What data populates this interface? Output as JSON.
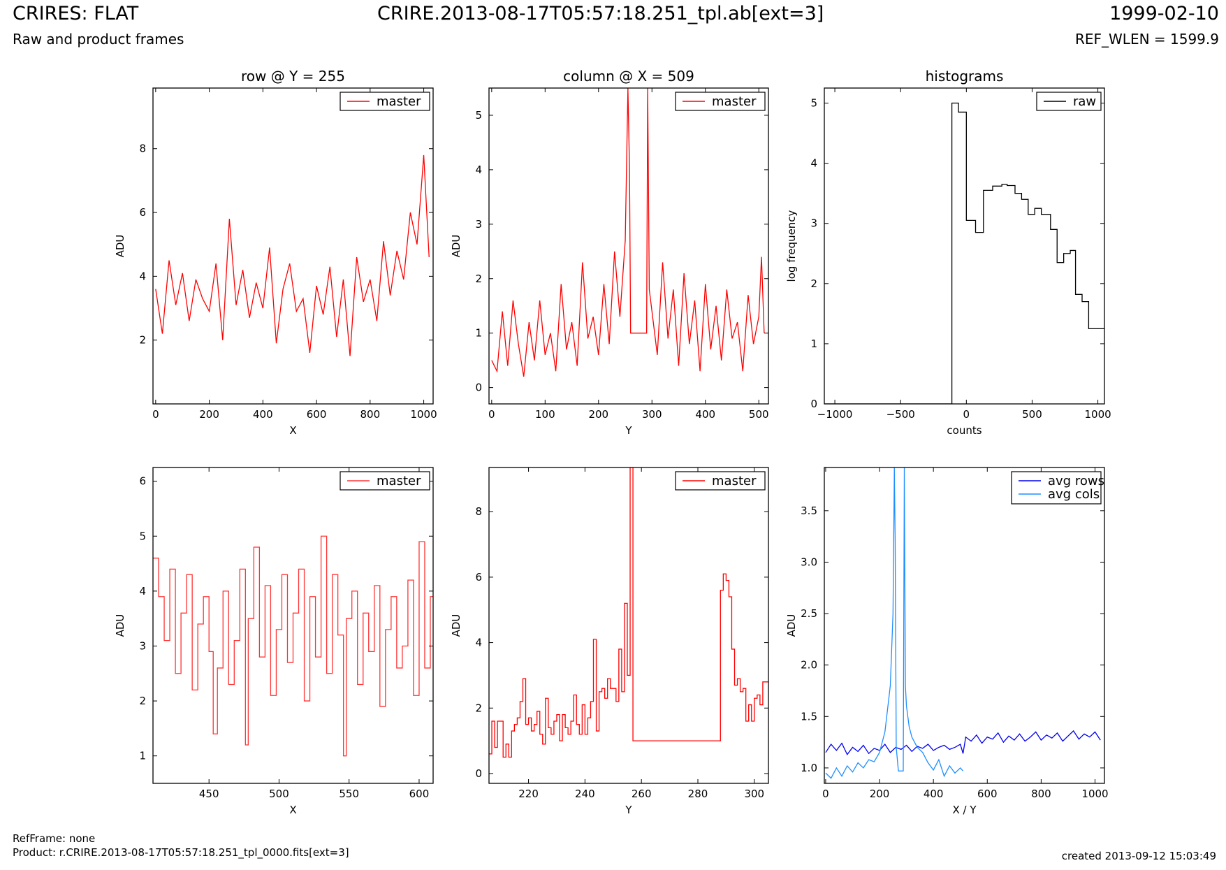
{
  "header": {
    "title_left": "CRIRES: FLAT",
    "subtitle_left": "Raw and product frames",
    "title_center": "CRIRE.2013-08-17T05:57:18.251_tpl.ab[ext=3]",
    "title_right": "1999-02-10",
    "subtitle_right": "REF_WLEN = 1599.9"
  },
  "footer": {
    "refframe": "RefFrame: none",
    "product": "Product: r.CRIRE.2013-08-17T05:57:18.251_tpl_0000.fits[ext=3]",
    "created": "created 2013-09-12 15:03:49"
  },
  "colors": {
    "master": "#ff0000",
    "master_zoom": "#ff3333",
    "raw": "#000000",
    "avg_rows": "#0000ee",
    "avg_cols": "#1e8fff"
  },
  "chart_data": [
    {
      "id": "row",
      "type": "line",
      "title": "row @ Y = 255",
      "xlabel": "X",
      "ylabel": "ADU",
      "xlim": [
        -10,
        1035
      ],
      "ylim": [
        0,
        9.9
      ],
      "xticks": [
        0,
        200,
        400,
        600,
        800,
        1000
      ],
      "yticks": [
        2,
        4,
        6,
        8
      ],
      "legend": "top-right",
      "series": [
        {
          "name": "master",
          "color": "#ff0000",
          "step": false,
          "x": [
            0,
            25,
            50,
            75,
            100,
            125,
            150,
            175,
            200,
            225,
            250,
            275,
            300,
            325,
            350,
            375,
            400,
            425,
            450,
            475,
            500,
            525,
            550,
            575,
            600,
            625,
            650,
            675,
            700,
            725,
            750,
            775,
            800,
            825,
            850,
            875,
            900,
            925,
            950,
            975,
            1000,
            1020
          ],
          "y": [
            3.6,
            2.2,
            4.5,
            3.1,
            4.1,
            2.6,
            3.9,
            3.3,
            2.9,
            4.4,
            2.0,
            5.8,
            3.1,
            4.2,
            2.7,
            3.8,
            3.0,
            4.9,
            1.9,
            3.6,
            4.4,
            2.9,
            3.3,
            1.6,
            3.7,
            2.8,
            4.3,
            2.1,
            3.9,
            1.5,
            4.6,
            3.2,
            3.9,
            2.6,
            5.1,
            3.4,
            4.8,
            3.9,
            6.0,
            5.0,
            7.8,
            4.6
          ]
        }
      ]
    },
    {
      "id": "column",
      "type": "line",
      "title": "column @ X = 509",
      "xlabel": "Y",
      "ylabel": "ADU",
      "xlim": [
        -5,
        518
      ],
      "ylim": [
        -0.3,
        5.5
      ],
      "xticks": [
        0,
        100,
        200,
        300,
        400,
        500
      ],
      "yticks": [
        0,
        1,
        2,
        3,
        4,
        5
      ],
      "legend": "top-right",
      "series": [
        {
          "name": "master",
          "color": "#ff0000",
          "step": false,
          "x": [
            0,
            10,
            20,
            30,
            40,
            50,
            60,
            70,
            80,
            90,
            100,
            110,
            120,
            130,
            140,
            150,
            160,
            170,
            180,
            190,
            200,
            210,
            220,
            230,
            240,
            250,
            255,
            258,
            260,
            262,
            290,
            292,
            295,
            300,
            310,
            320,
            330,
            340,
            350,
            360,
            370,
            380,
            390,
            400,
            410,
            420,
            430,
            440,
            450,
            460,
            470,
            480,
            490,
            500,
            505,
            510
          ],
          "y": [
            0.5,
            0.3,
            1.4,
            0.4,
            1.6,
            0.8,
            0.2,
            1.2,
            0.5,
            1.6,
            0.6,
            1.0,
            0.3,
            1.9,
            0.7,
            1.2,
            0.4,
            2.3,
            0.9,
            1.3,
            0.6,
            1.9,
            0.8,
            2.5,
            1.3,
            2.7,
            5.5,
            4.0,
            1.0,
            1.0,
            1.0,
            5.5,
            1.8,
            1.4,
            0.6,
            2.3,
            0.9,
            1.8,
            0.4,
            2.1,
            0.8,
            1.6,
            0.3,
            1.9,
            0.7,
            1.5,
            0.5,
            1.8,
            0.9,
            1.2,
            0.3,
            1.7,
            0.8,
            1.3,
            2.4,
            1.0
          ]
        }
      ]
    },
    {
      "id": "histograms",
      "type": "line",
      "title": "histograms",
      "xlabel": "counts",
      "ylabel": "log frequency",
      "xlim": [
        -1080,
        1050
      ],
      "ylim": [
        0,
        5.25
      ],
      "xticks": [
        -1000,
        -500,
        0,
        500,
        1000
      ],
      "yticks": [
        0,
        1,
        2,
        3,
        4,
        5
      ],
      "legend": "top-right",
      "series": [
        {
          "name": "raw",
          "color": "#000000",
          "step": true,
          "x": [
            -1080,
            -110,
            -60,
            0,
            70,
            130,
            200,
            270,
            310,
            370,
            420,
            470,
            520,
            570,
            640,
            690,
            740,
            790,
            830,
            880,
            930,
            1000
          ],
          "y": [
            0,
            5.0,
            4.85,
            3.05,
            2.85,
            3.55,
            3.62,
            3.65,
            3.63,
            3.5,
            3.4,
            3.15,
            3.25,
            3.15,
            2.9,
            2.35,
            2.5,
            2.55,
            1.82,
            1.7,
            1.25,
            1.25
          ]
        }
      ]
    },
    {
      "id": "row-zoom",
      "type": "line",
      "title": "",
      "xlabel": "X",
      "ylabel": "ADU",
      "xlim": [
        410,
        610
      ],
      "ylim": [
        0.5,
        6.25
      ],
      "xticks": [
        450,
        500,
        550,
        600
      ],
      "yticks": [
        1,
        2,
        3,
        4,
        5,
        6
      ],
      "legend": "top-right",
      "series": [
        {
          "name": "master",
          "color": "#ff3333",
          "step": true,
          "x": [
            410,
            414,
            418,
            422,
            426,
            430,
            434,
            438,
            442,
            446,
            450,
            453,
            456,
            460,
            464,
            468,
            472,
            476,
            478,
            482,
            486,
            490,
            494,
            498,
            502,
            506,
            510,
            514,
            518,
            522,
            526,
            530,
            534,
            538,
            542,
            546,
            548,
            552,
            556,
            560,
            564,
            568,
            572,
            576,
            580,
            584,
            588,
            592,
            596,
            600,
            604,
            608
          ],
          "y": [
            4.6,
            3.9,
            3.1,
            4.4,
            2.5,
            3.6,
            4.3,
            2.2,
            3.4,
            3.9,
            2.9,
            1.4,
            2.6,
            4.0,
            2.3,
            3.1,
            4.4,
            1.2,
            3.5,
            4.8,
            2.8,
            4.1,
            2.1,
            3.3,
            4.3,
            2.7,
            3.6,
            4.4,
            2.0,
            3.9,
            2.8,
            5.0,
            2.5,
            4.3,
            3.2,
            1.0,
            3.5,
            4.0,
            2.3,
            3.6,
            2.9,
            4.1,
            1.9,
            3.3,
            3.9,
            2.6,
            3.0,
            4.2,
            2.1,
            4.9,
            2.6,
            3.9
          ]
        }
      ]
    },
    {
      "id": "column-zoom",
      "type": "line",
      "title": "",
      "xlabel": "Y",
      "ylabel": "ADU",
      "xlim": [
        206,
        305
      ],
      "ylim": [
        -0.3,
        9.35
      ],
      "xticks": [
        220,
        240,
        260,
        280,
        300
      ],
      "yticks": [
        0,
        2,
        4,
        6,
        8
      ],
      "legend": "top-right",
      "series": [
        {
          "name": "master",
          "color": "#ff0000",
          "step": true,
          "x": [
            206,
            207,
            208,
            209,
            210,
            211,
            212,
            213,
            214,
            215,
            216,
            217,
            218,
            219,
            220,
            221,
            222,
            223,
            224,
            225,
            226,
            227,
            228,
            229,
            230,
            231,
            232,
            233,
            234,
            235,
            236,
            237,
            238,
            239,
            240,
            241,
            242,
            243,
            244,
            245,
            246,
            247,
            248,
            249,
            250,
            251,
            252,
            253,
            254,
            255,
            256,
            257,
            288,
            289,
            290,
            291,
            292,
            293,
            294,
            295,
            296,
            297,
            298,
            299,
            300,
            301,
            302,
            303,
            304
          ],
          "y": [
            0.6,
            1.6,
            0.8,
            1.6,
            1.6,
            0.5,
            0.9,
            0.5,
            1.3,
            1.5,
            1.7,
            2.2,
            2.9,
            1.5,
            1.7,
            1.3,
            1.5,
            1.9,
            1.2,
            0.9,
            2.3,
            1.4,
            1.2,
            1.6,
            1.8,
            1.0,
            1.8,
            1.4,
            1.2,
            1.6,
            2.4,
            1.5,
            1.2,
            2.1,
            1.2,
            1.7,
            2.2,
            4.1,
            1.3,
            2.5,
            2.6,
            2.3,
            2.9,
            2.6,
            2.6,
            2.2,
            3.8,
            2.5,
            5.2,
            3.0,
            9.35,
            1.0,
            5.6,
            6.1,
            5.9,
            5.4,
            3.8,
            2.7,
            2.9,
            2.5,
            2.6,
            1.6,
            2.1,
            1.6,
            2.3,
            2.4,
            2.1,
            2.8,
            2.8
          ]
        }
      ]
    },
    {
      "id": "averages",
      "type": "line",
      "title": "",
      "xlabel": "X / Y",
      "ylabel": "ADU",
      "xlim": [
        -5,
        1035
      ],
      "ylim": [
        0.85,
        3.92
      ],
      "xticks": [
        0,
        200,
        400,
        600,
        800,
        1000
      ],
      "yticks": [
        1.0,
        1.5,
        2.0,
        2.5,
        3.0,
        3.5
      ],
      "legend": "top-right",
      "series": [
        {
          "name": "avg rows",
          "color": "#0000ee",
          "step": false,
          "x": [
            0,
            20,
            40,
            60,
            80,
            100,
            120,
            140,
            160,
            180,
            200,
            220,
            240,
            260,
            280,
            300,
            320,
            340,
            360,
            380,
            400,
            420,
            440,
            460,
            480,
            500,
            510,
            520,
            540,
            560,
            580,
            600,
            620,
            640,
            660,
            680,
            700,
            720,
            740,
            760,
            780,
            800,
            820,
            840,
            860,
            880,
            900,
            920,
            940,
            960,
            980,
            1000,
            1020
          ],
          "y": [
            1.15,
            1.23,
            1.17,
            1.24,
            1.13,
            1.2,
            1.16,
            1.22,
            1.14,
            1.19,
            1.17,
            1.23,
            1.15,
            1.2,
            1.18,
            1.22,
            1.16,
            1.21,
            1.19,
            1.23,
            1.17,
            1.2,
            1.22,
            1.18,
            1.2,
            1.23,
            1.14,
            1.3,
            1.26,
            1.32,
            1.24,
            1.3,
            1.28,
            1.34,
            1.25,
            1.31,
            1.27,
            1.33,
            1.26,
            1.3,
            1.35,
            1.27,
            1.32,
            1.29,
            1.34,
            1.26,
            1.31,
            1.36,
            1.28,
            1.33,
            1.3,
            1.35,
            1.27
          ]
        },
        {
          "name": "avg cols",
          "color": "#1e8fff",
          "step": false,
          "x": [
            0,
            20,
            40,
            60,
            80,
            100,
            120,
            140,
            160,
            180,
            200,
            220,
            240,
            250,
            255,
            258,
            262,
            270,
            280,
            288,
            292,
            296,
            300,
            310,
            320,
            340,
            360,
            380,
            400,
            420,
            440,
            460,
            480,
            500,
            510
          ],
          "y": [
            0.95,
            0.9,
            1.0,
            0.92,
            1.02,
            0.96,
            1.05,
            1.0,
            1.08,
            1.06,
            1.15,
            1.35,
            1.8,
            2.5,
            3.92,
            3.2,
            1.2,
            0.97,
            0.97,
            0.97,
            3.92,
            1.8,
            1.6,
            1.4,
            1.3,
            1.2,
            1.15,
            1.05,
            0.98,
            1.08,
            0.92,
            1.02,
            0.95,
            1.0,
            0.97
          ]
        }
      ]
    }
  ]
}
